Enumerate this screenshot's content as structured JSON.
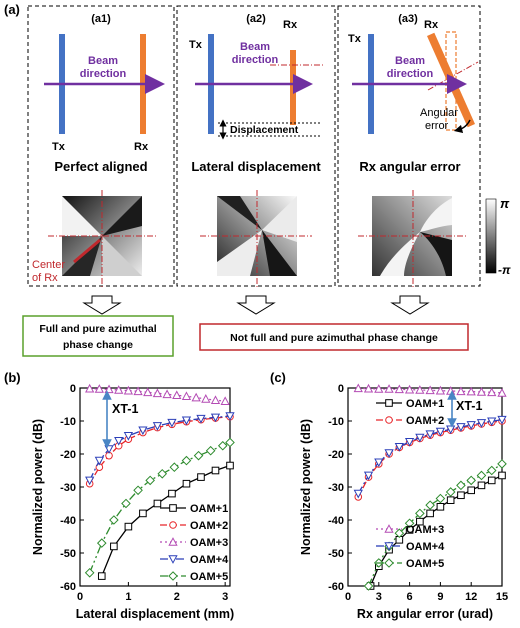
{
  "panel_a": {
    "label": "(a)",
    "sub": [
      {
        "id": "(a1)",
        "tx": "Tx",
        "rx": "Rx",
        "beam1": "Beam",
        "beam2": "direction",
        "caption": "Perfect aligned",
        "center1": "Center",
        "center2": "of Rx"
      },
      {
        "id": "(a2)",
        "tx": "Tx",
        "rx": "Rx",
        "beam1": "Beam",
        "beam2": "direction",
        "caption": "Lateral displacement",
        "annot": "Displacement"
      },
      {
        "id": "(a3)",
        "tx": "Tx",
        "rx": "Rx",
        "beam1": "Beam",
        "beam2": "direction",
        "caption": "Rx angular error",
        "annot1": "Angular",
        "annot2": "error"
      }
    ],
    "colorbar": {
      "top": "π",
      "bottom": "-π"
    },
    "box_left": {
      "line1": "Full and pure azimuthal",
      "line2": "phase change",
      "color": "#5aa02c"
    },
    "box_right": {
      "line1": "Not full and pure azimuthal phase change",
      "color": "#c0282d"
    }
  },
  "colors": {
    "beam": "#7030a0",
    "tx": "#4472c4",
    "rx": "#ed7d31",
    "red": "#c0282d"
  },
  "chart_data": [
    {
      "panel": "(b)",
      "type": "line",
      "xlabel": "Lateral displacement (mm)",
      "ylabel": "Normalized power (dB)",
      "xlim": [
        0,
        3.1
      ],
      "ylim": [
        -60,
        0
      ],
      "xticks": [
        0,
        1,
        2,
        3
      ],
      "yticks": [
        0,
        -10,
        -20,
        -30,
        -40,
        -50,
        -60
      ],
      "annotation": "XT-1",
      "series": [
        {
          "name": "OAM+1",
          "color": "#000000",
          "dash": "",
          "marker": "square",
          "x": [
            0.45,
            0.7,
            1.0,
            1.3,
            1.6,
            1.9,
            2.2,
            2.5,
            2.8,
            3.1
          ],
          "y": [
            -57,
            -48,
            -42,
            -38,
            -35,
            -32,
            -29,
            -27,
            -25,
            -23.5
          ]
        },
        {
          "name": "OAM+2",
          "color": "#e8262a",
          "dash": "7,3",
          "marker": "circle",
          "x": [
            0.2,
            0.4,
            0.6,
            0.8,
            1.0,
            1.3,
            1.6,
            1.9,
            2.2,
            2.5,
            2.8,
            3.1
          ],
          "y": [
            -29,
            -24,
            -20.5,
            -17.5,
            -15.5,
            -13.5,
            -12,
            -11,
            -10.2,
            -9.6,
            -9.1,
            -8.7
          ]
        },
        {
          "name": "OAM+3",
          "color": "#b44bb4",
          "dash": "2,3",
          "marker": "triangle",
          "x": [
            0.2,
            0.4,
            0.6,
            0.8,
            1.0,
            1.2,
            1.4,
            1.6,
            1.8,
            2.0,
            2.2,
            2.4,
            2.6,
            2.8,
            3.0
          ],
          "y": [
            -0.2,
            -0.3,
            -0.4,
            -0.6,
            -0.8,
            -1.0,
            -1.3,
            -1.6,
            -1.9,
            -2.2,
            -2.5,
            -2.9,
            -3.3,
            -3.7,
            -4.0
          ]
        },
        {
          "name": "OAM+4",
          "color": "#2b3fb8",
          "dash": "8,3,2,3",
          "marker": "tridown",
          "x": [
            0.2,
            0.4,
            0.6,
            0.8,
            1.0,
            1.3,
            1.6,
            1.9,
            2.2,
            2.5,
            2.8,
            3.1
          ],
          "y": [
            -28,
            -22,
            -18.5,
            -16,
            -14.5,
            -12.8,
            -11.5,
            -10.5,
            -9.8,
            -9.3,
            -8.9,
            -8.5
          ]
        },
        {
          "name": "OAM+5",
          "color": "#2e8b2e",
          "dash": "8,3,2,3,2,3",
          "marker": "diamond",
          "x": [
            0.2,
            0.45,
            0.7,
            0.95,
            1.2,
            1.45,
            1.7,
            1.95,
            2.2,
            2.45,
            2.7,
            2.95,
            3.1
          ],
          "y": [
            -56,
            -47,
            -40,
            -35,
            -31,
            -28,
            -26,
            -24,
            -22,
            -20.5,
            -19,
            -17.5,
            -16.5
          ]
        }
      ]
    },
    {
      "panel": "(c)",
      "type": "line",
      "xlabel": "Rx angular error (urad)",
      "ylabel": "Normalized power (dB)",
      "xlim": [
        0,
        15
      ],
      "ylim": [
        -60,
        0
      ],
      "xticks": [
        0,
        3,
        6,
        9,
        12,
        15
      ],
      "yticks": [
        0,
        -10,
        -20,
        -30,
        -40,
        -50,
        -60
      ],
      "annotation": "XT-1",
      "series": [
        {
          "name": "OAM+1",
          "color": "#000000",
          "dash": "",
          "marker": "square",
          "x": [
            2.2,
            3,
            4,
            5,
            6,
            7,
            8,
            9,
            10,
            11,
            12,
            13,
            14,
            15
          ],
          "y": [
            -60,
            -54,
            -49,
            -46,
            -43,
            -40.5,
            -38,
            -36,
            -34,
            -32.5,
            -31,
            -29.5,
            -28,
            -26.5
          ]
        },
        {
          "name": "OAM+2",
          "color": "#e8262a",
          "dash": "7,3",
          "marker": "circle",
          "x": [
            1,
            2,
            3,
            4,
            5,
            6,
            7,
            8,
            9,
            10,
            11,
            12,
            13,
            14,
            15
          ],
          "y": [
            -33,
            -27,
            -23,
            -20,
            -18,
            -16.5,
            -15.3,
            -14.3,
            -13.5,
            -12.8,
            -12.1,
            -11.5,
            -10.9,
            -10.4,
            -10
          ]
        },
        {
          "name": "OAM+3",
          "color": "#b44bb4",
          "dash": "2,3",
          "marker": "triangle",
          "x": [
            1,
            2,
            3,
            4,
            5,
            6,
            7,
            8,
            9,
            10,
            11,
            12,
            13,
            14,
            15
          ],
          "y": [
            -0.1,
            -0.2,
            -0.3,
            -0.3,
            -0.4,
            -0.5,
            -0.6,
            -0.7,
            -0.8,
            -0.9,
            -1.0,
            -1.1,
            -1.2,
            -1.3,
            -1.5
          ]
        },
        {
          "name": "OAM+4",
          "color": "#2b3fb8",
          "dash": "8,3,2,3",
          "marker": "tridown",
          "x": [
            1,
            2,
            3,
            4,
            5,
            6,
            7,
            8,
            9,
            10,
            11,
            12,
            13,
            14,
            15
          ],
          "y": [
            -32,
            -26.5,
            -22.5,
            -19.7,
            -17.8,
            -16.3,
            -15,
            -14,
            -13.2,
            -12.5,
            -11.8,
            -11.2,
            -10.6,
            -10.1,
            -9.6
          ]
        },
        {
          "name": "OAM+5",
          "color": "#2e8b2e",
          "dash": "8,3,2,3,2,3",
          "marker": "diamond",
          "x": [
            2,
            3,
            4,
            5,
            6,
            7,
            8,
            9,
            10,
            11,
            12,
            13,
            14,
            15
          ],
          "y": [
            -60,
            -53,
            -48,
            -44,
            -41,
            -38,
            -35.5,
            -33.5,
            -31.5,
            -29.5,
            -28,
            -26.5,
            -25,
            -23
          ]
        }
      ]
    }
  ]
}
